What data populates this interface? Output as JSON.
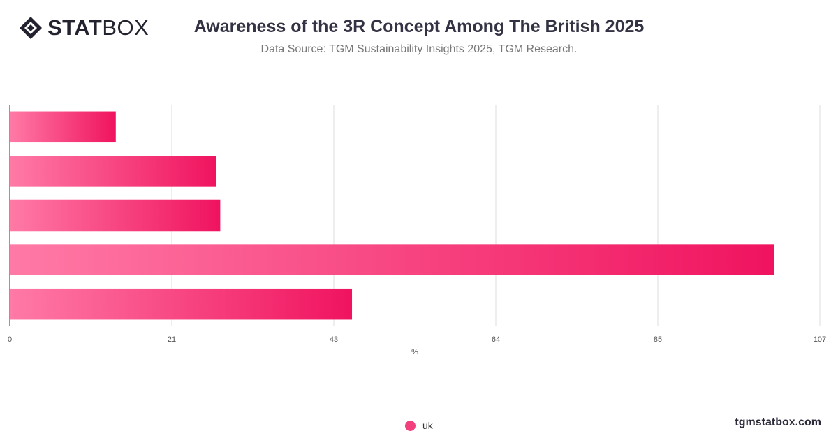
{
  "brand": {
    "logo_bold": "STAT",
    "logo_light": "BOX",
    "footer": "tgmstatbox.com"
  },
  "colors": {
    "bar_start": "#ff7aa6",
    "bar_end": "#f0135f",
    "grid": "#dddddd",
    "legend": "#f2407f"
  },
  "chart_data": {
    "type": "bar",
    "orientation": "horizontal",
    "title": "Awareness of the 3R Concept Among The British 2025",
    "subtitle": "Data Source: TGM Sustainability Insights 2025, TGM Research.",
    "xlabel": "%",
    "ylabel": "",
    "xlim": [
      0,
      107
    ],
    "xticks": [
      "0",
      "21",
      "43",
      "64",
      "85",
      "107"
    ],
    "xtick_values": [
      0,
      21.4,
      42.8,
      64.2,
      85.6,
      107
    ],
    "grid": true,
    "legend_position": "bottom-center",
    "categories": [
      "",
      "",
      "",
      "",
      ""
    ],
    "series": [
      {
        "name": "uk",
        "values": [
          14,
          27.3,
          27.8,
          101,
          45.2
        ]
      }
    ]
  }
}
